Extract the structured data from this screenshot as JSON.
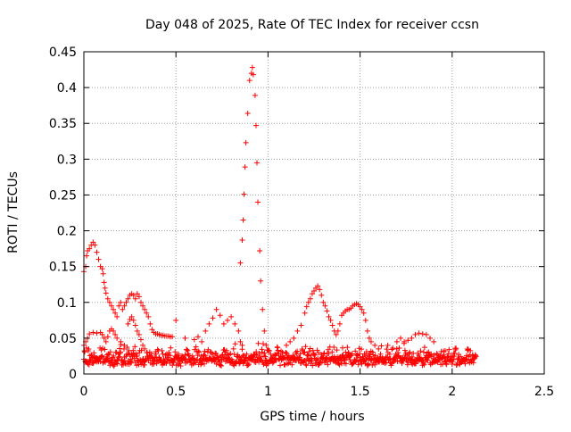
{
  "chart_data": {
    "type": "scatter",
    "title": "Day 048 of 2025, Rate Of TEC Index for receiver ccsn",
    "xlabel": "GPS time / hours",
    "ylabel": "ROTI / TECUs",
    "xlim": [
      0,
      2.5
    ],
    "ylim": [
      0,
      0.45
    ],
    "x_ticks": [
      0,
      0.5,
      1,
      1.5,
      2,
      2.5
    ],
    "x_tick_labels": [
      "0",
      "0.5",
      "1",
      "1.5",
      "2",
      "2.5"
    ],
    "y_ticks": [
      0,
      0.05,
      0.1,
      0.15,
      0.2,
      0.25,
      0.3,
      0.35,
      0.4,
      0.45
    ],
    "y_tick_labels": [
      "0",
      "0.05",
      "0.1",
      "0.15",
      "0.2",
      "0.25",
      "0.3",
      "0.35",
      "0.4",
      "0.45"
    ],
    "grid": true,
    "legend": "none",
    "marker": "plus",
    "marker_color": "#ff0000",
    "series": [
      {
        "points": [
          [
            0.0,
            0.143
          ],
          [
            0.01,
            0.15
          ],
          [
            0.015,
            0.165
          ],
          [
            0.02,
            0.172
          ],
          [
            0.03,
            0.175
          ],
          [
            0.04,
            0.18
          ],
          [
            0.05,
            0.184
          ],
          [
            0.06,
            0.18
          ],
          [
            0.07,
            0.17
          ],
          [
            0.08,
            0.16
          ],
          [
            0.09,
            0.15
          ],
          [
            0.1,
            0.147
          ],
          [
            0.105,
            0.14
          ],
          [
            0.11,
            0.128
          ],
          [
            0.115,
            0.12
          ],
          [
            0.12,
            0.113
          ],
          [
            0.13,
            0.105
          ],
          [
            0.14,
            0.1
          ],
          [
            0.15,
            0.095
          ],
          [
            0.16,
            0.09
          ],
          [
            0.17,
            0.085
          ],
          [
            0.18,
            0.08
          ],
          [
            0.19,
            0.095
          ],
          [
            0.2,
            0.1
          ],
          [
            0.21,
            0.09
          ],
          [
            0.22,
            0.095
          ],
          [
            0.23,
            0.1
          ],
          [
            0.24,
            0.105
          ],
          [
            0.25,
            0.11
          ],
          [
            0.26,
            0.112
          ],
          [
            0.27,
            0.11
          ],
          [
            0.28,
            0.105
          ],
          [
            0.29,
            0.112
          ],
          [
            0.3,
            0.108
          ],
          [
            0.31,
            0.1
          ],
          [
            0.32,
            0.095
          ],
          [
            0.33,
            0.09
          ],
          [
            0.34,
            0.085
          ],
          [
            0.35,
            0.08
          ],
          [
            0.36,
            0.07
          ],
          [
            0.37,
            0.062
          ],
          [
            0.38,
            0.058
          ],
          [
            0.39,
            0.056
          ],
          [
            0.4,
            0.056
          ],
          [
            0.41,
            0.055
          ],
          [
            0.42,
            0.054
          ],
          [
            0.43,
            0.054
          ],
          [
            0.44,
            0.053
          ],
          [
            0.45,
            0.053
          ],
          [
            0.46,
            0.053
          ],
          [
            0.47,
            0.052
          ],
          [
            0.48,
            0.052
          ],
          [
            0.5,
            0.075
          ],
          [
            0.55,
            0.05
          ],
          [
            0.6,
            0.048
          ],
          [
            0.62,
            0.052
          ],
          [
            0.64,
            0.045
          ],
          [
            0.66,
            0.06
          ],
          [
            0.68,
            0.07
          ],
          [
            0.7,
            0.078
          ],
          [
            0.72,
            0.09
          ],
          [
            0.74,
            0.082
          ],
          [
            0.76,
            0.07
          ],
          [
            0.78,
            0.075
          ],
          [
            0.8,
            0.08
          ],
          [
            0.82,
            0.07
          ],
          [
            0.84,
            0.06
          ],
          [
            0.85,
            0.045
          ],
          [
            0.86,
            0.04
          ]
        ]
      },
      {
        "points": [
          [
            0.85,
            0.155
          ],
          [
            0.86,
            0.187
          ],
          [
            0.865,
            0.215
          ],
          [
            0.87,
            0.251
          ],
          [
            0.875,
            0.289
          ],
          [
            0.88,
            0.323
          ],
          [
            0.89,
            0.364
          ],
          [
            0.9,
            0.41
          ],
          [
            0.91,
            0.42
          ],
          [
            0.915,
            0.428
          ],
          [
            0.92,
            0.418
          ],
          [
            0.93,
            0.389
          ],
          [
            0.935,
            0.347
          ],
          [
            0.94,
            0.295
          ],
          [
            0.945,
            0.24
          ],
          [
            0.955,
            0.172
          ],
          [
            0.96,
            0.13
          ],
          [
            0.97,
            0.09
          ],
          [
            0.98,
            0.06
          ],
          [
            0.99,
            0.04
          ]
        ]
      },
      {
        "points": [
          [
            0.0,
            0.04
          ],
          [
            0.01,
            0.045
          ],
          [
            0.02,
            0.05
          ],
          [
            0.03,
            0.056
          ],
          [
            0.05,
            0.058
          ],
          [
            0.07,
            0.057
          ],
          [
            0.09,
            0.058
          ],
          [
            0.1,
            0.055
          ],
          [
            0.11,
            0.05
          ],
          [
            0.12,
            0.045
          ],
          [
            0.13,
            0.052
          ],
          [
            0.14,
            0.06
          ],
          [
            0.15,
            0.063
          ],
          [
            0.16,
            0.06
          ],
          [
            0.17,
            0.055
          ],
          [
            0.18,
            0.05
          ],
          [
            0.2,
            0.045
          ],
          [
            0.22,
            0.04
          ],
          [
            0.24,
            0.07
          ],
          [
            0.25,
            0.076
          ],
          [
            0.26,
            0.08
          ],
          [
            0.27,
            0.075
          ],
          [
            0.28,
            0.068
          ],
          [
            0.29,
            0.06
          ],
          [
            0.3,
            0.055
          ],
          [
            0.31,
            0.048
          ],
          [
            0.32,
            0.04
          ],
          [
            0.33,
            0.035
          ]
        ]
      },
      {
        "points": [
          [
            1.1,
            0.04
          ],
          [
            1.12,
            0.045
          ],
          [
            1.14,
            0.05
          ],
          [
            1.16,
            0.06
          ],
          [
            1.18,
            0.068
          ],
          [
            1.2,
            0.085
          ],
          [
            1.21,
            0.094
          ],
          [
            1.22,
            0.1
          ],
          [
            1.23,
            0.105
          ],
          [
            1.24,
            0.112
          ],
          [
            1.25,
            0.116
          ],
          [
            1.26,
            0.12
          ],
          [
            1.27,
            0.123
          ],
          [
            1.28,
            0.118
          ],
          [
            1.29,
            0.11
          ],
          [
            1.3,
            0.1
          ],
          [
            1.31,
            0.095
          ],
          [
            1.32,
            0.088
          ],
          [
            1.33,
            0.08
          ],
          [
            1.34,
            0.075
          ],
          [
            1.35,
            0.068
          ],
          [
            1.36,
            0.06
          ],
          [
            1.37,
            0.055
          ],
          [
            1.38,
            0.06
          ],
          [
            1.39,
            0.07
          ],
          [
            1.4,
            0.082
          ],
          [
            1.41,
            0.085
          ],
          [
            1.42,
            0.088
          ],
          [
            1.43,
            0.09
          ],
          [
            1.44,
            0.09
          ],
          [
            1.45,
            0.092
          ],
          [
            1.46,
            0.095
          ],
          [
            1.47,
            0.097
          ],
          [
            1.48,
            0.098
          ],
          [
            1.49,
            0.097
          ],
          [
            1.5,
            0.094
          ],
          [
            1.51,
            0.09
          ],
          [
            1.52,
            0.085
          ],
          [
            1.53,
            0.075
          ],
          [
            1.54,
            0.06
          ],
          [
            1.55,
            0.05
          ],
          [
            1.56,
            0.045
          ],
          [
            1.58,
            0.04
          ],
          [
            1.6,
            0.035
          ],
          [
            1.65,
            0.04
          ],
          [
            1.7,
            0.045
          ],
          [
            1.72,
            0.05
          ],
          [
            1.74,
            0.045
          ],
          [
            1.76,
            0.047
          ],
          [
            1.78,
            0.05
          ],
          [
            1.8,
            0.055
          ],
          [
            1.82,
            0.057
          ],
          [
            1.84,
            0.056
          ],
          [
            1.86,
            0.055
          ],
          [
            1.88,
            0.05
          ],
          [
            1.9,
            0.045
          ]
        ]
      }
    ],
    "baseline_band": {
      "x": [
        0.0,
        2.13
      ],
      "y": [
        0.005,
        0.045
      ]
    }
  }
}
